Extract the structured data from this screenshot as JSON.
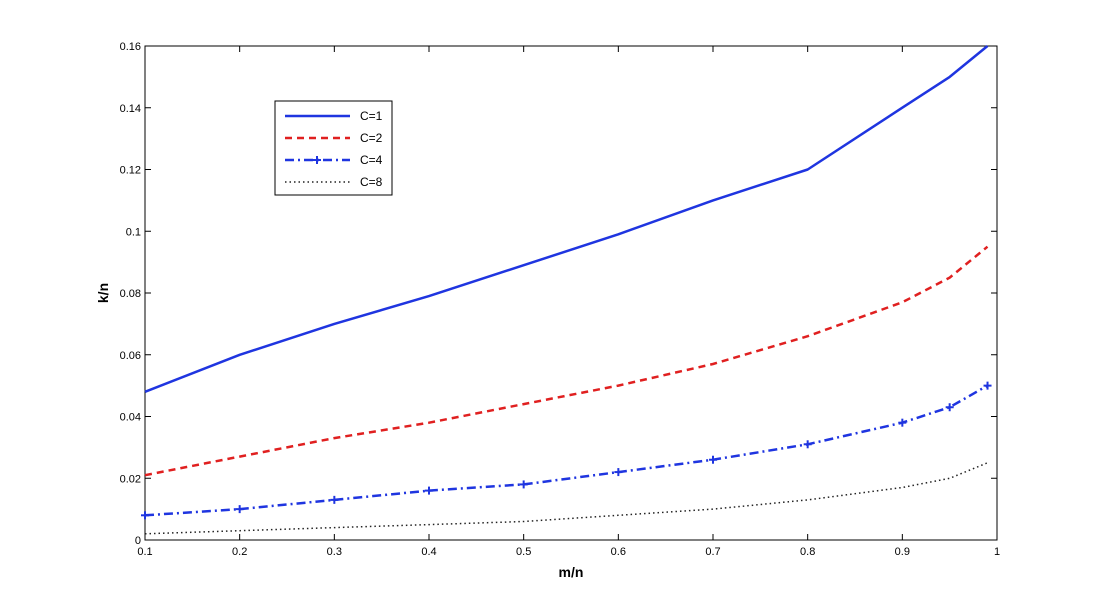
{
  "chart_data": {
    "type": "line",
    "title": "",
    "xlabel": "m/n",
    "ylabel": "k/n",
    "xlim": [
      0.1,
      1
    ],
    "ylim": [
      0,
      0.16
    ],
    "xticks": [
      "0.1",
      "0.2",
      "0.3",
      "0.4",
      "0.5",
      "0.6",
      "0.7",
      "0.8",
      "0.9",
      "1"
    ],
    "yticks": [
      "0",
      "0.02",
      "0.04",
      "0.06",
      "0.08",
      "0.1",
      "0.12",
      "0.14",
      "0.16"
    ],
    "grid": false,
    "legend_position": "top-left",
    "x": [
      0.1,
      0.2,
      0.3,
      0.4,
      0.5,
      0.6,
      0.7,
      0.8,
      0.9,
      0.95,
      0.99
    ],
    "series": [
      {
        "name": "C=1",
        "color": "#1f35e0",
        "style": "solid",
        "values": [
          0.048,
          0.06,
          0.07,
          0.079,
          0.089,
          0.099,
          0.11,
          0.12,
          0.14,
          0.15,
          0.16
        ]
      },
      {
        "name": "C=2",
        "color": "#e02020",
        "style": "dashed",
        "values": [
          0.021,
          0.027,
          0.033,
          0.038,
          0.044,
          0.05,
          0.057,
          0.066,
          0.077,
          0.085,
          0.095
        ]
      },
      {
        "name": "C=4",
        "color": "#1f35e0",
        "style": "dashdot-plus",
        "values": [
          0.008,
          0.01,
          0.013,
          0.016,
          0.018,
          0.022,
          0.026,
          0.031,
          0.038,
          0.043,
          0.05
        ]
      },
      {
        "name": "C=8",
        "color": "#222222",
        "style": "dotted",
        "values": [
          0.002,
          0.003,
          0.004,
          0.005,
          0.006,
          0.008,
          0.01,
          0.013,
          0.017,
          0.02,
          0.025
        ]
      }
    ]
  }
}
